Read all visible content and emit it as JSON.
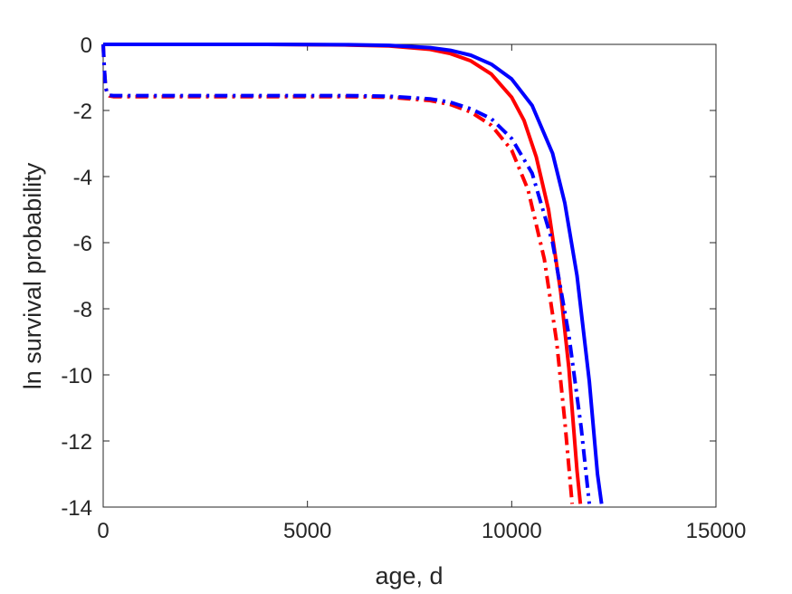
{
  "chart_data": {
    "type": "line",
    "title": "",
    "xlabel": "age, d",
    "ylabel": "ln survival probability",
    "xlim": [
      0,
      15000
    ],
    "ylim": [
      -14,
      0
    ],
    "xticks": [
      0,
      5000,
      10000,
      15000
    ],
    "yticks": [
      -14,
      -12,
      -10,
      -8,
      -6,
      -4,
      -2,
      0
    ],
    "xtick_labels": [
      "0",
      "5000",
      "10000",
      "15000"
    ],
    "ytick_labels": [
      "-14",
      "-12",
      "-10",
      "-8",
      "-6",
      "-4",
      "-2",
      "0"
    ],
    "grid": false,
    "legend": "none",
    "series": [
      {
        "color": "#ff0000",
        "style": "solid",
        "x": [
          0,
          2000,
          4000,
          6000,
          7000,
          8000,
          8500,
          9000,
          9500,
          10000,
          10300,
          10600,
          10900,
          11200,
          11400,
          11600,
          11680
        ],
        "y": [
          0,
          0,
          0,
          -0.02,
          -0.05,
          -0.15,
          -0.28,
          -0.5,
          -0.9,
          -1.6,
          -2.3,
          -3.4,
          -5.0,
          -7.5,
          -9.8,
          -12.9,
          -13.9
        ]
      },
      {
        "color": "#0000ff",
        "style": "solid",
        "x": [
          0,
          2000,
          4000,
          6000,
          7000,
          8000,
          8500,
          9000,
          9500,
          10000,
          10500,
          11000,
          11300,
          11600,
          11900,
          12100,
          12200
        ],
        "y": [
          0,
          0,
          0,
          -0.01,
          -0.03,
          -0.1,
          -0.18,
          -0.33,
          -0.6,
          -1.05,
          -1.85,
          -3.3,
          -4.8,
          -7.0,
          -10.2,
          -13.0,
          -13.9
        ]
      },
      {
        "color": "#ff0000",
        "style": "dashdot",
        "x": [
          0,
          30,
          60,
          100,
          150,
          250,
          1000,
          3000,
          5000,
          6000,
          7000,
          8000,
          8500,
          9000,
          9500,
          10000,
          10400,
          10800,
          11100,
          11300,
          11480
        ],
        "y": [
          0,
          -0.8,
          -1.3,
          -1.5,
          -1.56,
          -1.58,
          -1.58,
          -1.58,
          -1.58,
          -1.58,
          -1.6,
          -1.7,
          -1.82,
          -2.05,
          -2.45,
          -3.2,
          -4.4,
          -6.5,
          -9.0,
          -11.4,
          -13.9
        ]
      },
      {
        "color": "#0000ff",
        "style": "dashdot",
        "x": [
          0,
          30,
          60,
          100,
          150,
          250,
          1000,
          3000,
          5000,
          6000,
          7000,
          8000,
          8500,
          9000,
          9500,
          10000,
          10500,
          11000,
          11400,
          11700,
          11900
        ],
        "y": [
          0,
          -0.8,
          -1.3,
          -1.48,
          -1.54,
          -1.55,
          -1.55,
          -1.55,
          -1.55,
          -1.55,
          -1.57,
          -1.65,
          -1.75,
          -1.95,
          -2.25,
          -2.85,
          -3.9,
          -6.0,
          -8.8,
          -11.6,
          -13.9
        ]
      }
    ]
  }
}
